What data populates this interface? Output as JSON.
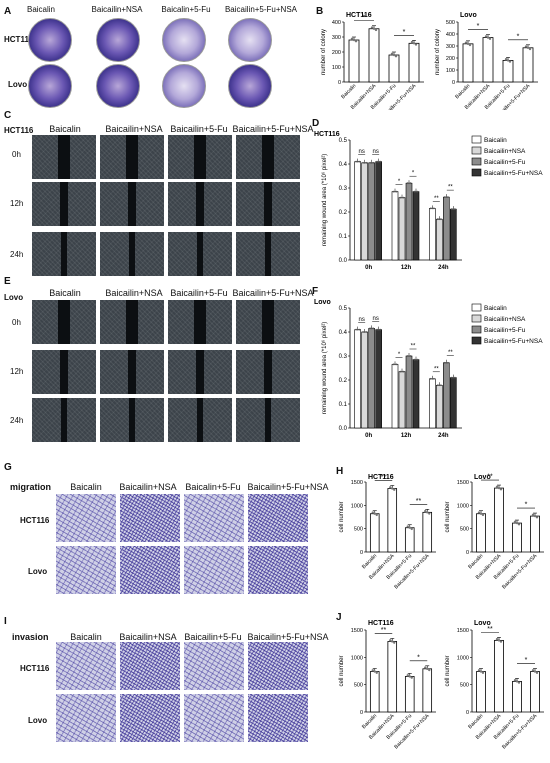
{
  "groups": [
    "Baicalin",
    "Baicailin+NSA",
    "Baicalin+5-Fu",
    "Baicailin+5-Fu+NSA"
  ],
  "groups_wound": [
    "Baicalin",
    "Baicailin+NSA",
    "Baicailin+5-Fu",
    "Baicailin+5-Fu+NSA"
  ],
  "groups_G": [
    "Baicalin",
    "Baicailin+NSA",
    "Baicalin+5-Fu",
    "Baicailin+5-Fu+NSA"
  ],
  "groups_I": [
    "Baicalin",
    "Baicailin+NSA",
    "Baicailin+5-Fu",
    "Baicailin+5-Fu+NSA"
  ],
  "bar_categories": [
    "Baicalin",
    "Baicailin+NSA",
    "Baicailin+5-Fu",
    "Baicailin+5-Fu+NSA"
  ],
  "cell_lines": [
    "HCT116",
    "Lovo"
  ],
  "timepoints": [
    "0h",
    "12h",
    "24h"
  ],
  "panel_labels": {
    "A": "A",
    "B": "B",
    "C": "C",
    "D": "D",
    "E": "E",
    "F": "F",
    "G": "G",
    "H": "H",
    "I": "I",
    "J": "J"
  },
  "row_titles": {
    "migration": "migration",
    "invasion": "invasion"
  },
  "sig": {
    "one": "*",
    "two": "**",
    "ns": "ns"
  },
  "colors": {
    "white": "#ffffff",
    "lightgray": "#d9d9d9",
    "midgray": "#8c8c8c",
    "dark": "#333333",
    "bar_stroke": "#000000"
  },
  "chart_data": [
    {
      "id": "B-HCT116",
      "type": "bar",
      "title": "HCT116",
      "ylabel": "number of colony",
      "ylim": [
        0,
        400
      ],
      "ticks": [
        0,
        100,
        200,
        300,
        400
      ],
      "categories": [
        "Baicalin",
        "Baicailin+NSA",
        "Baicailin+5-Fu",
        "Baicailin+5-Fu+NSA"
      ],
      "values": [
        280,
        355,
        180,
        258
      ]
    },
    {
      "id": "B-Lovo",
      "type": "bar",
      "title": "Lovo",
      "ylabel": "number of colony",
      "ylim": [
        0,
        500
      ],
      "ticks": [
        0,
        100,
        200,
        300,
        400,
        500
      ],
      "categories": [
        "Baicalin",
        "Baicailin+NSA",
        "Baicailin+5-Fu",
        "Baicailin+5-Fu+NSA"
      ],
      "values": [
        318,
        370,
        180,
        285
      ]
    },
    {
      "id": "D",
      "type": "bar",
      "title": "HCT116",
      "ylabel": "remaining wound area (*10⁶ pixel²)",
      "ylim": [
        0,
        0.5
      ],
      "ticks": [
        "0.0",
        "0.1",
        "0.2",
        "0.3",
        "0.4",
        "0.5"
      ],
      "categories": [
        "0h",
        "12h",
        "24h"
      ],
      "legend": [
        "Baicalin",
        "Baicailin+NSA",
        "Baicailin+5-Fu",
        "Baicailin+5-Fu+NSA"
      ],
      "series": [
        {
          "name": "Baicalin",
          "values": [
            0.41,
            0.285,
            0.215
          ]
        },
        {
          "name": "Baicailin+NSA",
          "values": [
            0.405,
            0.26,
            0.17
          ]
        },
        {
          "name": "Baicailin+5-Fu",
          "values": [
            0.405,
            0.32,
            0.262
          ]
        },
        {
          "name": "Baicailin+5-Fu+NSA",
          "values": [
            0.41,
            0.285,
            0.212
          ]
        }
      ]
    },
    {
      "id": "F",
      "type": "bar",
      "title": "Lovo",
      "ylabel": "remaining wound area (*10⁶ pixel²)",
      "ylim": [
        0,
        0.5
      ],
      "ticks": [
        "0.0",
        "0.1",
        "0.2",
        "0.3",
        "0.4",
        "0.5"
      ],
      "categories": [
        "0h",
        "12h",
        "24h"
      ],
      "legend": [
        "Baicalin",
        "Baicailin+NSA",
        "Baicailin+5-Fu",
        "Baicailin+5-Fu+NSA"
      ],
      "series": [
        {
          "name": "Baicalin",
          "values": [
            0.41,
            0.265,
            0.205
          ]
        },
        {
          "name": "Baicailin+NSA",
          "values": [
            0.4,
            0.235,
            0.178
          ]
        },
        {
          "name": "Baicailin+5-Fu",
          "values": [
            0.415,
            0.3,
            0.272
          ]
        },
        {
          "name": "Baicailin+5-Fu+NSA",
          "values": [
            0.41,
            0.285,
            0.21
          ]
        }
      ]
    },
    {
      "id": "H-HCT116",
      "type": "bar",
      "title": "HCT116",
      "ylabel": "cell number",
      "ylim": [
        0,
        1500
      ],
      "ticks": [
        0,
        500,
        1000,
        1500
      ],
      "categories": [
        "Baicalin",
        "Baicailin+NSA",
        "Baicailin+5-Fu",
        "Baicailin+5-Fu+NSA"
      ],
      "values": [
        820,
        1360,
        520,
        850
      ]
    },
    {
      "id": "H-Lovo",
      "type": "bar",
      "title": "Lovo",
      "ylabel": "cell number",
      "ylim": [
        0,
        1500
      ],
      "ticks": [
        0,
        500,
        1000,
        1500
      ],
      "categories": [
        "Baicalin",
        "Baicailin+NSA",
        "Baicailin+5-Fu",
        "Baicailin+5-Fu+NSA"
      ],
      "values": [
        820,
        1370,
        620,
        770
      ]
    },
    {
      "id": "J-HCT116",
      "type": "bar",
      "title": "HCT116",
      "ylabel": "cell number",
      "ylim": [
        0,
        1500
      ],
      "ticks": [
        0,
        500,
        1000,
        1500
      ],
      "categories": [
        "Baicalin",
        "Baicailin+NSA",
        "Baicailin+5-Fu",
        "Baicailin+5-Fu+NSA"
      ],
      "values": [
        740,
        1290,
        650,
        790
      ]
    },
    {
      "id": "J-Lovo",
      "type": "bar",
      "title": "Lovo",
      "ylabel": "cell number",
      "ylim": [
        0,
        1500
      ],
      "ticks": [
        0,
        500,
        1000,
        1500
      ],
      "categories": [
        "Baicalin",
        "Baicailin+NSA",
        "Baicailin+5-Fu",
        "Baicailin+5-Fu+NSA"
      ],
      "values": [
        740,
        1310,
        560,
        740
      ]
    }
  ]
}
